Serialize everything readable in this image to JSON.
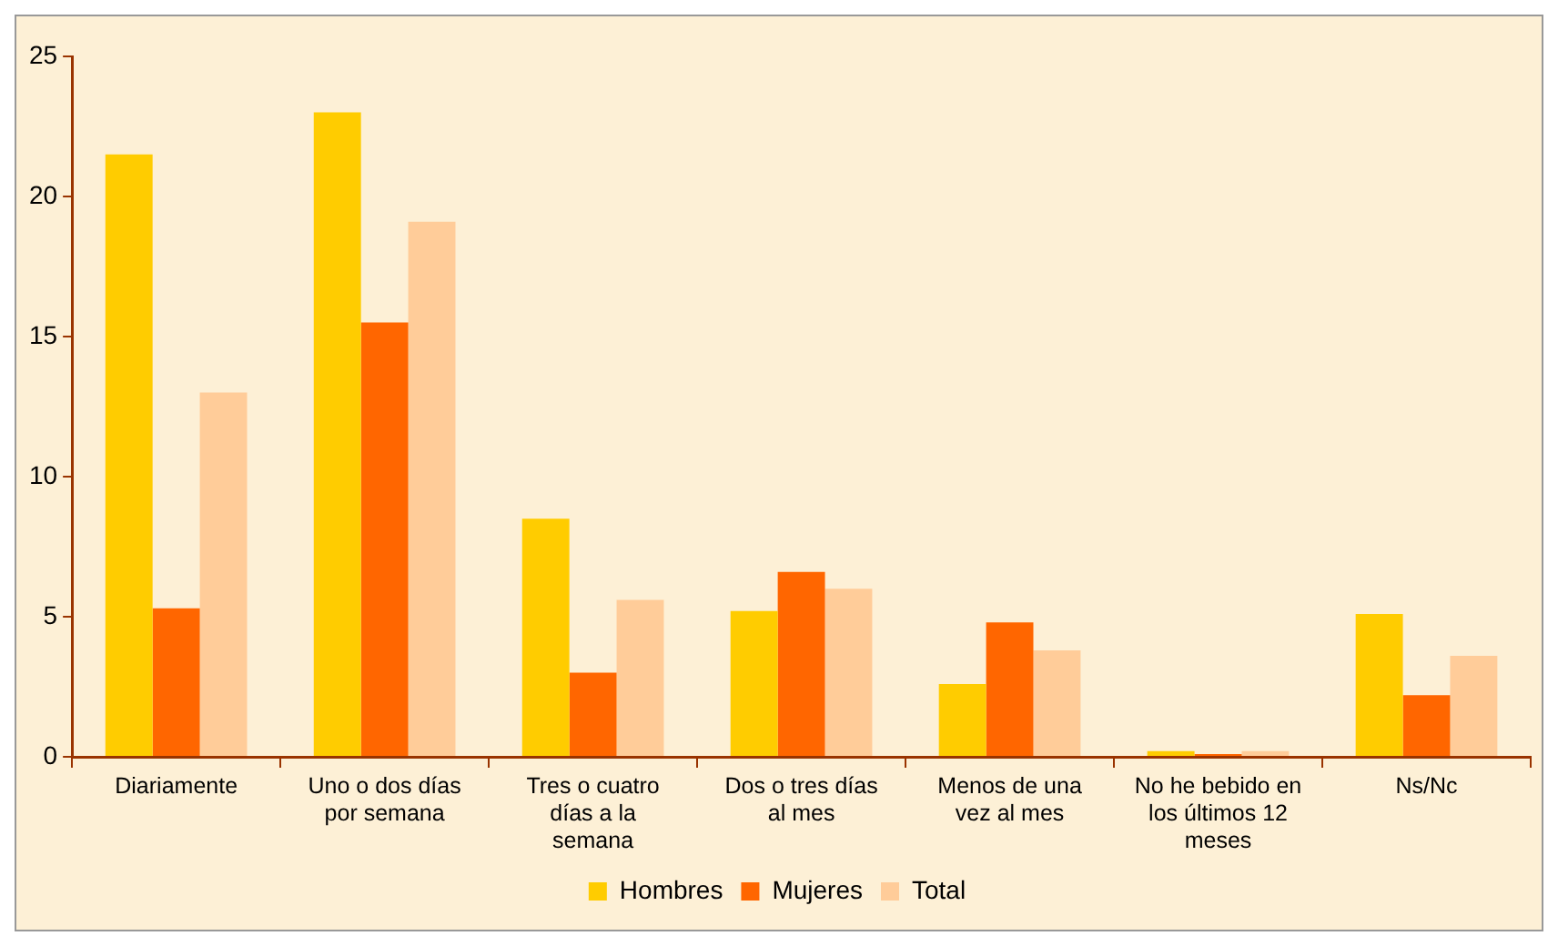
{
  "chart_data": {
    "type": "bar",
    "categories": [
      "Diariamente",
      "Uno o dos días por semana",
      "Tres o cuatro días a la semana",
      "Dos o tres días al mes",
      "Menos de una vez al mes",
      "No he bebido en los últimos 12 meses",
      "Ns/Nc"
    ],
    "series": [
      {
        "name": "Hombres",
        "color": "#ffcc00",
        "values": [
          21.5,
          23.0,
          8.5,
          5.2,
          2.6,
          0.2,
          5.1
        ]
      },
      {
        "name": "Mujeres",
        "color": "#ff6600",
        "values": [
          5.3,
          15.5,
          3.0,
          6.6,
          4.8,
          0.1,
          2.2
        ]
      },
      {
        "name": "Total",
        "color": "#ffcc99",
        "values": [
          13.0,
          19.1,
          5.6,
          6.0,
          3.8,
          0.2,
          3.6
        ]
      }
    ],
    "ylim": [
      0,
      25
    ],
    "yticks": [
      0,
      5,
      10,
      15,
      20,
      25
    ],
    "grid": false,
    "legend": "bottom"
  }
}
